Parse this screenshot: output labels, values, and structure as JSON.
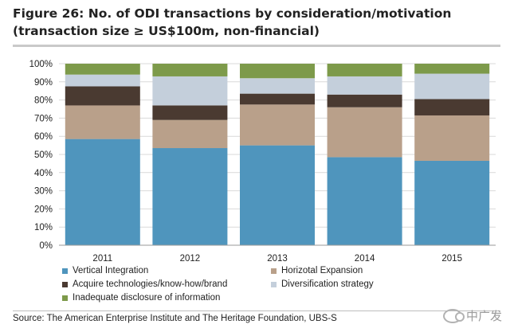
{
  "figure": {
    "title": "Figure 26: No. of ODI transactions by consideration/motivation (transaction size ≥ US$100m, non-financial)",
    "source": "Source:  The American Enterprise Institute and The Heritage Foundation, UBS-S",
    "watermark": "中广发"
  },
  "chart_data": {
    "type": "bar",
    "stacked": true,
    "title": "Figure 26: No. of ODI transactions by consideration/motivation (transaction size ≥ US$100m, non-financial)",
    "xlabel": "",
    "ylabel": "",
    "categories": [
      "2011",
      "2012",
      "2013",
      "2014",
      "2015"
    ],
    "ylim": [
      0,
      100
    ],
    "y_ticks": [
      "0%",
      "10%",
      "20%",
      "30%",
      "40%",
      "50%",
      "60%",
      "70%",
      "80%",
      "90%",
      "100%"
    ],
    "grid": true,
    "legend_position": "bottom",
    "series": [
      {
        "name": "Vertical Integration",
        "color": "#4f95bd",
        "values": [
          58.5,
          53.5,
          55,
          48.5,
          46.5
        ]
      },
      {
        "name": "Horizotal Expansion",
        "color": "#b9a08a",
        "values": [
          18.5,
          15.5,
          22.5,
          27.5,
          25
        ]
      },
      {
        "name": "Acquire technologies/know-how/brand",
        "color": "#4a3a31",
        "values": [
          10.5,
          8,
          6,
          7,
          9
        ]
      },
      {
        "name": "Diversification strategy",
        "color": "#c4cfdb",
        "values": [
          6.5,
          16,
          8.5,
          10,
          14
        ]
      },
      {
        "name": "Inadequate disclosure of information",
        "color": "#7d9a4a",
        "values": [
          6,
          7,
          8,
          7,
          5.5
        ]
      }
    ]
  }
}
